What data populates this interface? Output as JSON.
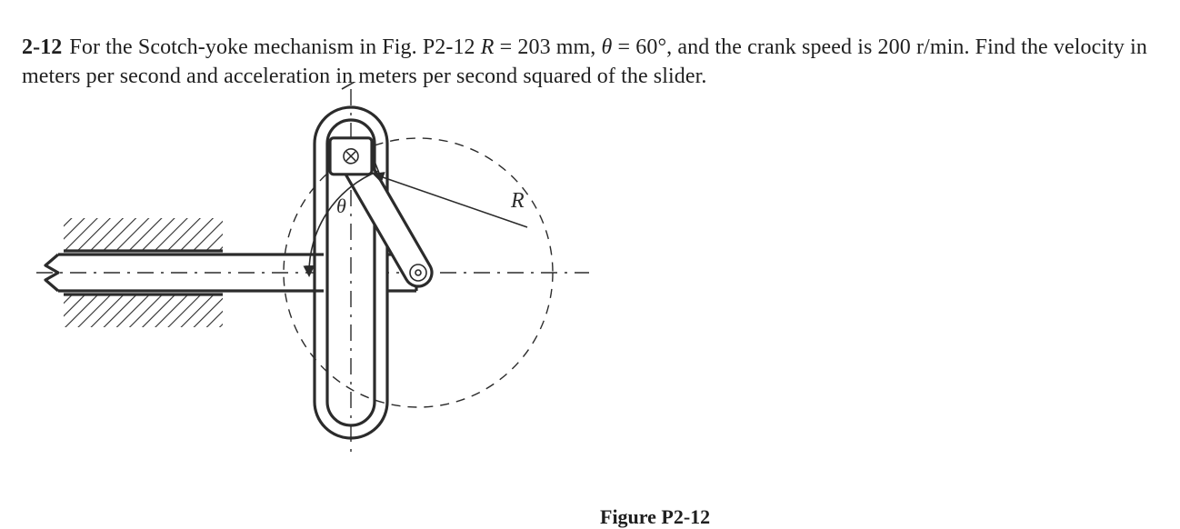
{
  "problem": {
    "number": "2-12",
    "text_1": "For the Scotch-yoke mechanism in Fig. P2-12 ",
    "var_R": "R",
    "eq1": " = 203 mm, ",
    "var_theta": "θ",
    "eq2": " = 60°, and the crank speed is 200 r/min. Find the velocity in meters per second and acceleration in meters per second squared of the slider."
  },
  "figure": {
    "caption": "Figure P2-12",
    "label_theta": "θ",
    "label_R": "R",
    "stroke_color": "#2b2b2b",
    "line_width_main": 3.2,
    "line_width_thin": 1.6,
    "line_width_dash": 1.4,
    "hatch_angle_deg": 45,
    "hatch_spacing": 10,
    "circle_radius": 148,
    "pin_r": 8,
    "crank_half_width": 15,
    "yoke_slot_half_width": 26,
    "yoke_slot_half_height": 168,
    "crank_angle_from_horizontal_deg": 60,
    "colors": {
      "bg": "#ffffff",
      "ink": "#2b2b2b"
    }
  }
}
